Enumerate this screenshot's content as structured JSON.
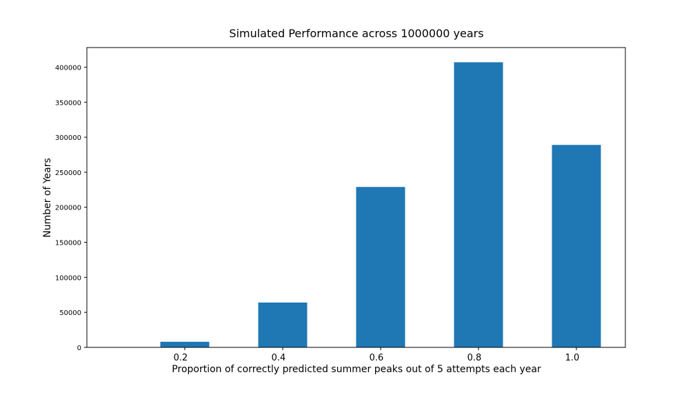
{
  "chart_data": {
    "type": "bar",
    "title": "Simulated Performance across 1000000 years",
    "xlabel": "Proportion of correctly predicted summer peaks out of 5 attempts each year",
    "ylabel": "Number of Years",
    "categories": [
      "0.2",
      "0.4",
      "0.6",
      "0.8",
      "1.0"
    ],
    "values": [
      8000,
      64000,
      229000,
      407000,
      289000
    ],
    "yticks": [
      0,
      50000,
      100000,
      150000,
      200000,
      250000,
      300000,
      350000,
      400000
    ],
    "ylim": [
      0,
      428000
    ],
    "grid": false,
    "bar_color": "#1f77b4"
  }
}
